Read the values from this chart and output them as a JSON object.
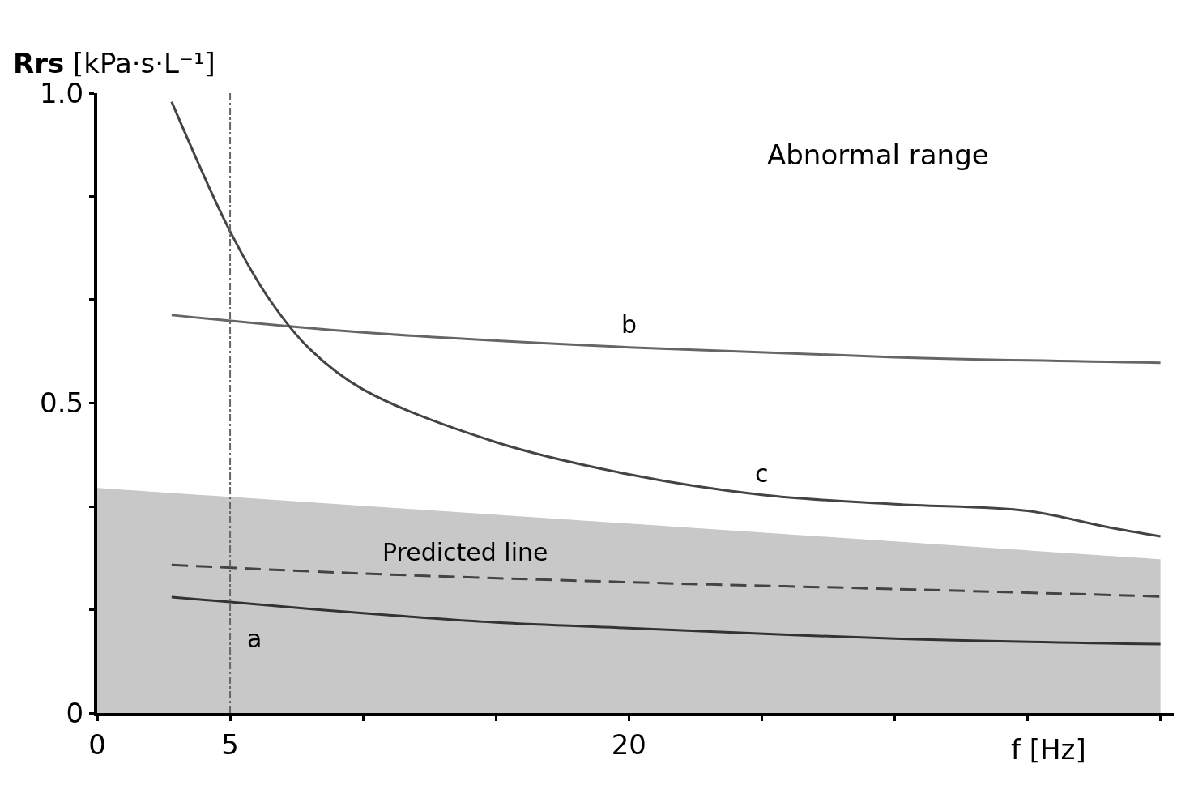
{
  "chart_data": {
    "type": "line",
    "xlabel": "f [Hz]",
    "ylabel": "Rrs [kPa·s·L⁻¹]",
    "xlim": [
      0,
      40.5
    ],
    "ylim": [
      0,
      1.0
    ],
    "xticks": [
      0,
      5,
      {
        "value": 10,
        "label": null
      },
      {
        "value": 15,
        "label": null
      },
      20,
      {
        "value": 25,
        "label": null
      },
      {
        "value": 30,
        "label": null
      },
      {
        "value": 35,
        "label": null
      },
      {
        "value": 40,
        "label": null
      }
    ],
    "yticks": [
      0,
      {
        "value": 0.167,
        "label": null
      },
      {
        "value": 0.333,
        "label": null
      },
      0.5,
      {
        "value": 0.667,
        "label": null
      },
      {
        "value": 0.833,
        "label": null
      },
      {
        "value": 1.0,
        "label": "1.0"
      }
    ],
    "legend": false,
    "marker": "none",
    "series": [
      {
        "type": "area",
        "color": "#c8c8c8",
        "x": [
          0,
          40
        ],
        "values": [
          0.363,
          0.248
        ]
      },
      {
        "name": "Predicted line",
        "color": "#444444",
        "line_style": "dashed",
        "x": [
          2.8,
          10,
          20,
          30,
          40
        ],
        "values": [
          0.239,
          0.225,
          0.211,
          0.2,
          0.188
        ]
      },
      {
        "name": "a",
        "color": "#333333",
        "x": [
          2.8,
          5,
          10,
          15,
          20,
          30,
          40
        ],
        "values": [
          0.187,
          0.179,
          0.161,
          0.146,
          0.137,
          0.12,
          0.111
        ]
      },
      {
        "name": "b",
        "color": "#666666",
        "x": [
          2.8,
          10,
          20,
          30,
          40
        ],
        "values": [
          0.642,
          0.614,
          0.59,
          0.574,
          0.565
        ]
      },
      {
        "name": "c",
        "color": "#444444",
        "x": [
          2.8,
          5,
          6.5,
          8,
          10,
          15,
          20,
          25,
          30,
          35,
          38,
          40
        ],
        "values": [
          0.986,
          0.777,
          0.666,
          0.587,
          0.522,
          0.437,
          0.385,
          0.352,
          0.337,
          0.326,
          0.3,
          0.285
        ]
      }
    ],
    "ref_lines": [
      {
        "axis": "x",
        "value": 5,
        "line_style": "dashdot",
        "color": "#666666"
      }
    ],
    "annotations": [
      "Abnormal range"
    ]
  }
}
